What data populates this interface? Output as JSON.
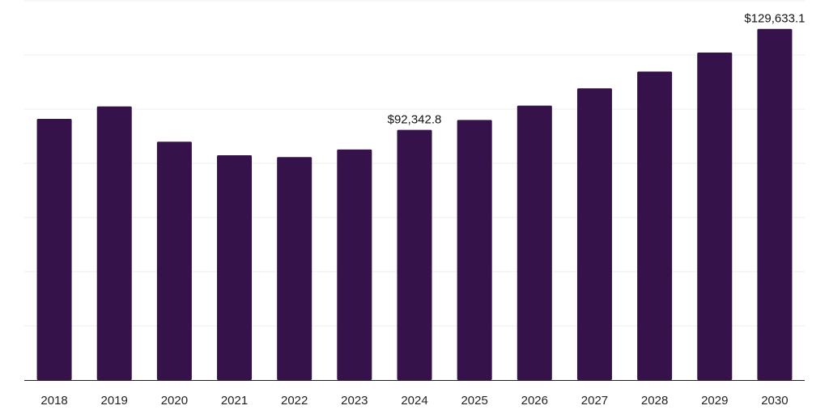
{
  "chart_data": {
    "type": "bar",
    "title": "",
    "xlabel": "",
    "ylabel": "",
    "categories": [
      "2018",
      "2019",
      "2020",
      "2021",
      "2022",
      "2023",
      "2024",
      "2025",
      "2026",
      "2027",
      "2028",
      "2029",
      "2030"
    ],
    "values": [
      96400,
      101000,
      88000,
      83000,
      82300,
      85100,
      92342.8,
      96000,
      101300,
      107700,
      113900,
      120900,
      129633.1
    ],
    "data_labels": {
      "2024": "$92,342.8",
      "2030": "$129,633.1"
    },
    "ylim": [
      0,
      140000
    ],
    "gridlines": [
      0,
      20000,
      40000,
      60000,
      80000,
      100000,
      120000,
      140000
    ],
    "grid": true,
    "y_tick_labels_visible": false,
    "bar_color": "#36124a"
  }
}
